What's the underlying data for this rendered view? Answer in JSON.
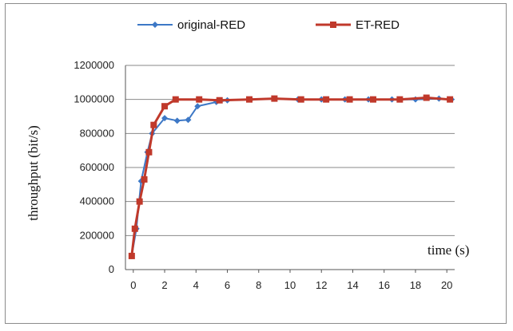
{
  "chart_data": {
    "type": "line",
    "xlabel": "time (s)",
    "ylabel": "throughput (bit/s)",
    "xlim": [
      -0.5,
      20.5
    ],
    "ylim": [
      0,
      1200000
    ],
    "x_ticks": [
      0,
      2,
      4,
      6,
      8,
      10,
      12,
      14,
      16,
      18,
      20
    ],
    "y_ticks": [
      0,
      200000,
      400000,
      600000,
      800000,
      1000000,
      1200000
    ],
    "grid": "horizontal",
    "legend_position": "top",
    "series": [
      {
        "name": "original-RED",
        "color": "#3d78c6",
        "marker": "diamond",
        "x": [
          -0.1,
          0.2,
          0.5,
          0.9,
          1.2,
          2.0,
          2.8,
          3.5,
          4.1,
          5.3,
          6.0,
          7.5,
          9.0,
          10.5,
          12.0,
          13.5,
          15.0,
          16.5,
          18.0,
          19.5,
          20.3
        ],
        "y": [
          80000,
          240000,
          520000,
          690000,
          800000,
          890000,
          875000,
          880000,
          960000,
          985000,
          995000,
          1000000,
          1005000,
          1000000,
          1000000,
          1000000,
          1000000,
          1000000,
          1000000,
          1005000,
          1000000
        ]
      },
      {
        "name": "ET-RED",
        "color": "#c0392b",
        "marker": "square",
        "x": [
          -0.1,
          0.1,
          0.4,
          0.7,
          1.0,
          1.3,
          2.0,
          2.7,
          4.2,
          5.5,
          7.4,
          9.0,
          10.7,
          12.3,
          13.8,
          15.3,
          17.0,
          18.7,
          20.2
        ],
        "y": [
          80000,
          240000,
          400000,
          530000,
          690000,
          850000,
          960000,
          1000000,
          1000000,
          995000,
          1000000,
          1005000,
          1000000,
          1000000,
          1000000,
          1000000,
          1000000,
          1010000,
          1000000
        ]
      }
    ]
  }
}
